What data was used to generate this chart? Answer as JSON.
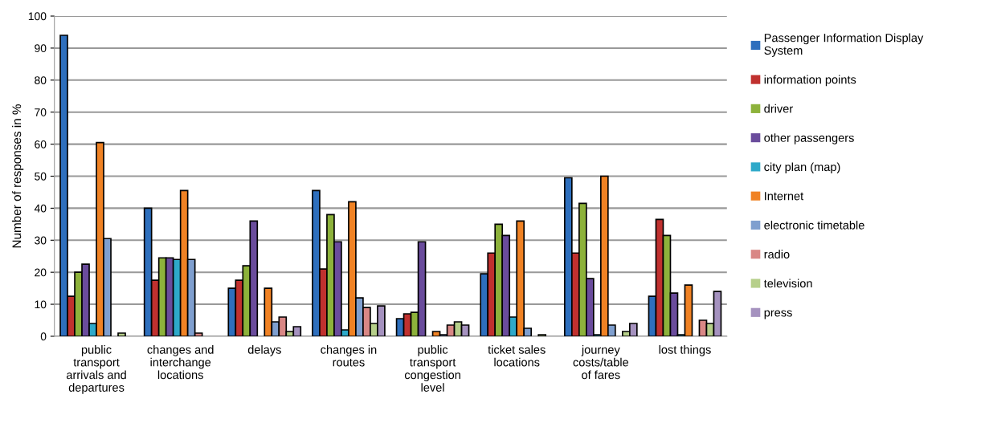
{
  "chart_data": {
    "type": "bar",
    "ylabel": "Number of responses in %",
    "categories": [
      "public transport arrivals and departures",
      "changes and interchange locations",
      "delays",
      "changes in routes",
      "public transport congestion level",
      "ticket sales locations",
      "journey costs/table of fares",
      "lost things"
    ],
    "series": [
      {
        "name": "Passenger Information Display System",
        "color": "#2e6fbd",
        "values": [
          94,
          40,
          15,
          45.5,
          5.5,
          19.5,
          49.5,
          12.5
        ]
      },
      {
        "name": "information points",
        "color": "#c0312f",
        "values": [
          12.5,
          17.5,
          17.5,
          21,
          7,
          26,
          26,
          36.5
        ]
      },
      {
        "name": "driver",
        "color": "#8db23b",
        "values": [
          20,
          24.5,
          22,
          38,
          7.5,
          35,
          41.5,
          31.5
        ]
      },
      {
        "name": "other passengers",
        "color": "#6a4c9c",
        "values": [
          22.5,
          24.5,
          36,
          29.5,
          29.5,
          31.5,
          18,
          13.5
        ]
      },
      {
        "name": "city plan (map)",
        "color": "#2ea9c9",
        "values": [
          4,
          24,
          0,
          2,
          0,
          6,
          0.5,
          0.5
        ]
      },
      {
        "name": "Internet",
        "color": "#f08224",
        "values": [
          60.5,
          45.5,
          15,
          42,
          1.5,
          36,
          50,
          16
        ]
      },
      {
        "name": "electronic timetable",
        "color": "#7f9fcf",
        "values": [
          30.5,
          24,
          4.5,
          12,
          0.5,
          2.5,
          3.5,
          0
        ]
      },
      {
        "name": "radio",
        "color": "#d98785",
        "values": [
          0,
          1,
          6,
          9,
          3.5,
          0,
          0,
          5
        ]
      },
      {
        "name": "television",
        "color": "#b6cf8a",
        "values": [
          1,
          0,
          1.5,
          4,
          4.5,
          0.5,
          1.5,
          4
        ]
      },
      {
        "name": "press",
        "color": "#a592bf",
        "values": [
          0,
          0,
          3,
          9.5,
          3.5,
          0,
          4,
          14
        ]
      }
    ],
    "ylim": [
      0,
      100
    ],
    "yticks": [
      0,
      10,
      20,
      30,
      40,
      50,
      60,
      70,
      80,
      90,
      100
    ],
    "grid": "y",
    "legend": "right"
  }
}
